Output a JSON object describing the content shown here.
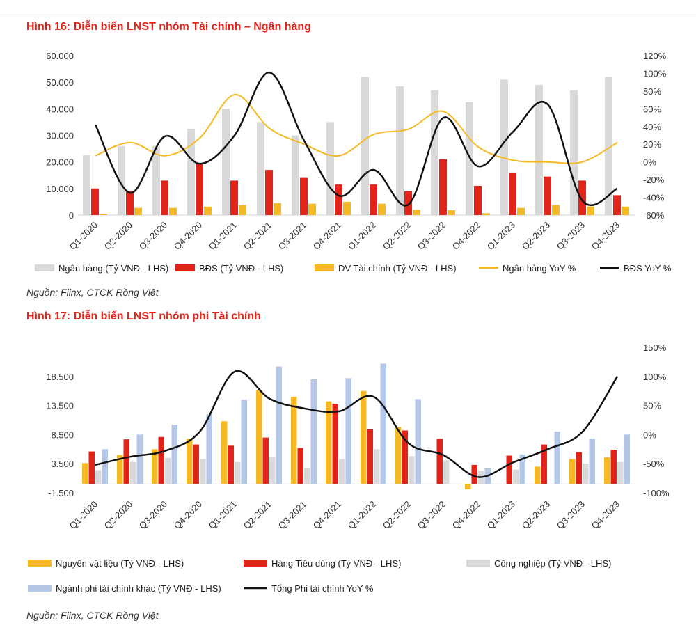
{
  "figures": [
    {
      "title": "Hình 16: Diễn biến LNST nhóm Tài chính – Ngân hàng",
      "source": "Nguồn: Fiinx, CTCK Rồng Việt"
    },
    {
      "title": "Hình 17: Diễn biến LNST nhóm phi Tài chính",
      "source": "Nguồn: Fiinx, CTCK Rồng Việt"
    }
  ],
  "chart_data": [
    {
      "type": "bar",
      "title": "Hình 16: Diễn biến LNST nhóm Tài chính – Ngân hàng",
      "categories": [
        "Q1-2020",
        "Q2-2020",
        "Q3-2020",
        "Q4-2020",
        "Q1-2021",
        "Q2-2021",
        "Q3-2021",
        "Q4-2021",
        "Q1-2022",
        "Q2-2022",
        "Q3-2022",
        "Q4-2022",
        "Q1-2023",
        "Q2-2023",
        "Q3-2023",
        "Q4-2023"
      ],
      "ylim_left": [
        0,
        60000
      ],
      "yticks_left": [
        "0",
        "10.000",
        "20.000",
        "30.000",
        "40.000",
        "50.000",
        "60.000"
      ],
      "yticks_left_values": [
        0,
        10000,
        20000,
        30000,
        40000,
        50000,
        60000
      ],
      "ylim_right": [
        -60,
        120
      ],
      "yticks_right": [
        "-60%",
        "-40%",
        "-20%",
        "0%",
        "20%",
        "40%",
        "60%",
        "80%",
        "100%",
        "120%"
      ],
      "yticks_right_values": [
        -60,
        -40,
        -20,
        0,
        20,
        40,
        60,
        80,
        100,
        120
      ],
      "legend_position": "bottom",
      "bar_series": [
        {
          "name": "Ngân hàng (Tỷ VNĐ - LHS)",
          "color": "#d9d9d9",
          "values": [
            22500,
            26000,
            26000,
            32500,
            40000,
            35000,
            30000,
            35000,
            52000,
            48500,
            47000,
            42500,
            51000,
            49000,
            47000,
            52000
          ]
        },
        {
          "name": "BĐS (Tỷ VNĐ - LHS)",
          "color": "#e2231a",
          "values": [
            10000,
            9000,
            13000,
            19500,
            13000,
            17000,
            14000,
            11500,
            11500,
            9000,
            21000,
            11000,
            16000,
            14500,
            13000,
            7500
          ]
        },
        {
          "name": "DV Tài chính (Tỷ VNĐ - LHS)",
          "color": "#f5b923",
          "values": [
            500,
            2700,
            2700,
            3200,
            3800,
            4500,
            4300,
            5000,
            4300,
            2000,
            1800,
            700,
            2700,
            3800,
            3200,
            3200
          ]
        }
      ],
      "line_series": [
        {
          "name": "Ngân hàng YoY %",
          "color": "#f5b923",
          "values": [
            7,
            22,
            7,
            27,
            76,
            38,
            20,
            7,
            31,
            37,
            57,
            17,
            2,
            0,
            0,
            22
          ]
        },
        {
          "name": "BĐS YoY %",
          "color": "#111111",
          "values": [
            42,
            -35,
            29,
            -2,
            30,
            101,
            24,
            -38,
            -9,
            -48,
            50,
            -5,
            34,
            65,
            -44,
            -30
          ]
        }
      ]
    },
    {
      "type": "bar",
      "title": "Hình 17: Diễn biến LNST nhóm phi Tài chính",
      "categories": [
        "Q1-2020",
        "Q2-2020",
        "Q3-2020",
        "Q4-2020",
        "Q1-2021",
        "Q2-2021",
        "Q3-2021",
        "Q4-2021",
        "Q1-2022",
        "Q2-2022",
        "Q3-2022",
        "Q4-2022",
        "Q1-2023",
        "Q2-2023",
        "Q3-2023",
        "Q4-2023"
      ],
      "ylim_left": [
        -1500,
        23500
      ],
      "yticks_left": [
        "-1.500",
        "3.500",
        "8.500",
        "13.500",
        "18.500"
      ],
      "yticks_left_values": [
        -1500,
        3500,
        8500,
        13500,
        18500
      ],
      "ylim_right": [
        -100,
        150
      ],
      "yticks_right": [
        "-100%",
        "-50%",
        "0%",
        "50%",
        "100%",
        "150%"
      ],
      "yticks_right_values": [
        -100,
        -50,
        0,
        50,
        100,
        150
      ],
      "legend_position": "bottom",
      "bar_series": [
        {
          "name": "Nguyên vật liệu (Tỷ VNĐ - LHS)",
          "color": "#f5b923",
          "values": [
            3600,
            5000,
            6000,
            7800,
            10800,
            16200,
            15000,
            14200,
            16000,
            9800,
            0,
            -900,
            0,
            3000,
            4300,
            4600
          ]
        },
        {
          "name": "Hàng Tiêu dùng (Tỷ VNĐ - LHS)",
          "color": "#e2231a",
          "values": [
            5600,
            7700,
            8100,
            6800,
            6600,
            8000,
            6200,
            13800,
            9400,
            9200,
            7800,
            3300,
            4900,
            6800,
            5500,
            5900
          ]
        },
        {
          "name": "Công nghiệp (Tỷ VNĐ - LHS)",
          "color": "#d9d9d9",
          "values": [
            2400,
            3800,
            4500,
            4300,
            3800,
            4700,
            2800,
            4300,
            6000,
            4800,
            4100,
            2300,
            2500,
            0,
            3500,
            3800
          ]
        },
        {
          "name": "Ngành phi tài chính khác (Tỷ VNĐ - LHS)",
          "color": "#b4c7e7",
          "values": [
            6000,
            8500,
            10200,
            12000,
            14500,
            20200,
            18000,
            18200,
            20700,
            14600,
            0,
            2700,
            5100,
            9000,
            7800,
            8500
          ]
        }
      ],
      "line_series": [
        {
          "name": "Tổng Phi tài chính YoY %",
          "color": "#111111",
          "values": [
            -52,
            -38,
            -28,
            5,
            108,
            62,
            45,
            40,
            65,
            -15,
            -35,
            -73,
            -48,
            -25,
            5,
            100
          ]
        }
      ]
    }
  ]
}
